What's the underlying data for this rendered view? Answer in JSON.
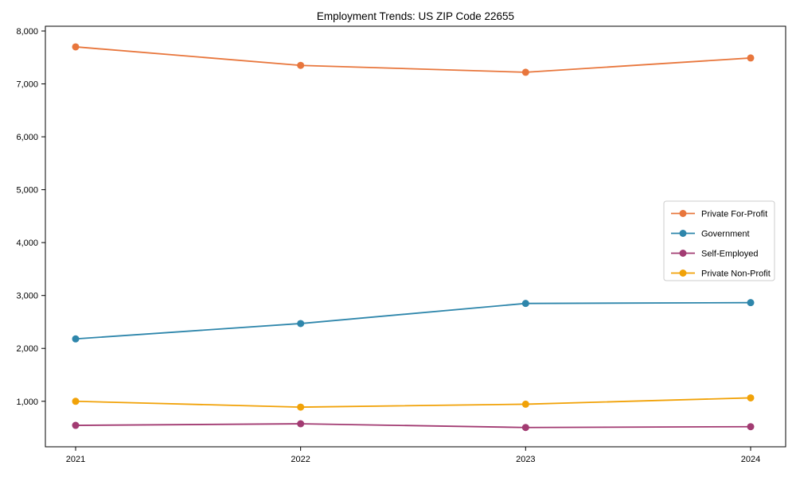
{
  "figure": {
    "background": "#ffffff",
    "axis_color": "#000000",
    "legend_border_color": "#cccccc"
  },
  "chart_data": {
    "type": "line",
    "title": "Employment Trends: US ZIP Code 22655",
    "xlabel": "",
    "ylabel": "",
    "x": [
      "2021",
      "2022",
      "2023",
      "2024"
    ],
    "series": [
      {
        "name": "Private For-Profit",
        "color": "#e8763c",
        "values": [
          7700,
          7350,
          7220,
          7490
        ]
      },
      {
        "name": "Government",
        "color": "#2e86ab",
        "values": [
          2180,
          2470,
          2850,
          2865
        ]
      },
      {
        "name": "Self-Employed",
        "color": "#a23b72",
        "values": [
          545,
          575,
          505,
          520
        ]
      },
      {
        "name": "Private Non-Profit",
        "color": "#f1a208",
        "values": [
          1000,
          890,
          945,
          1065
        ]
      }
    ],
    "yticks": [
      1000,
      2000,
      3000,
      4000,
      5000,
      6000,
      7000,
      8000
    ],
    "ytick_labels": [
      "1,000",
      "2,000",
      "3,000",
      "4,000",
      "5,000",
      "6,000",
      "7,000",
      "8,000"
    ],
    "ylim": [
      140,
      8090
    ],
    "grid": false,
    "marker": "circle",
    "legend_position": "center right"
  }
}
